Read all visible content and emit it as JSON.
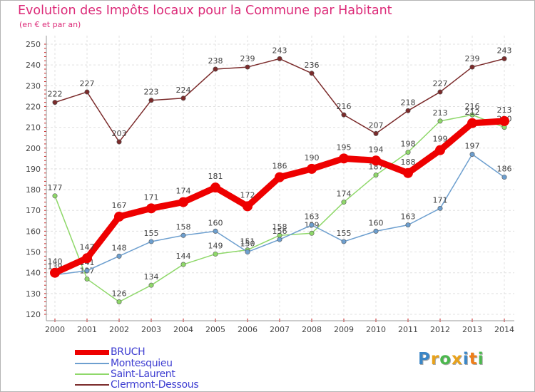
{
  "header": {
    "title": "Evolution des Impôts locaux pour la Commune par Habitant",
    "subtitle": "(en € et par an)"
  },
  "chart_data": {
    "type": "line",
    "title": "Evolution des Impôts locaux pour la Commune par Habitant",
    "subtitle": "(en € et par an)",
    "xlabel": "",
    "ylabel": "",
    "x": [
      "2000",
      "2001",
      "2002",
      "2003",
      "2004",
      "2005",
      "2006",
      "2007",
      "2008",
      "2009",
      "2010",
      "2011",
      "2012",
      "2013",
      "2014"
    ],
    "ylim": [
      120,
      250
    ],
    "yticks": [
      120,
      130,
      140,
      150,
      160,
      170,
      180,
      190,
      200,
      210,
      220,
      230,
      240,
      250
    ],
    "grid": true,
    "legend_position": "bottom-left",
    "series": [
      {
        "name": "Clermont-Dessous",
        "color": "#7b2b2b",
        "values": [
          222,
          227,
          203,
          223,
          224,
          238,
          239,
          243,
          236,
          216,
          207,
          218,
          227,
          239,
          243
        ]
      },
      {
        "name": "Saint-Laurent",
        "color": "#8fd86a",
        "values": [
          177,
          137,
          126,
          134,
          144,
          149,
          151,
          158,
          159,
          174,
          187,
          198,
          213,
          216,
          210
        ]
      },
      {
        "name": "Montesquieu",
        "color": "#6d9fcf",
        "values": [
          139,
          141,
          148,
          155,
          158,
          160,
          150,
          156,
          163,
          155,
          160,
          163,
          171,
          197,
          186
        ]
      },
      {
        "name": "BRUCH",
        "color": "#ee0000",
        "values": [
          140,
          147,
          167,
          171,
          174,
          181,
          172,
          186,
          190,
          195,
          194,
          188,
          199,
          212,
          213
        ]
      }
    ]
  },
  "legend": {
    "items": [
      {
        "label": "BRUCH",
        "color": "#ee0000"
      },
      {
        "label": "Montesquieu",
        "color": "#6d9fcf"
      },
      {
        "label": "Saint-Laurent",
        "color": "#8fd86a"
      },
      {
        "label": "Clermont-Dessous",
        "color": "#7b2b2b"
      }
    ]
  },
  "logo": {
    "letters": [
      {
        "ch": "P",
        "color": "#3a86c6"
      },
      {
        "ch": "r",
        "color": "#e8a21b"
      },
      {
        "ch": "o",
        "color": "#4bb84d"
      },
      {
        "ch": "x",
        "color": "#e8a21b"
      },
      {
        "ch": "i",
        "color": "#3a86c6"
      },
      {
        "ch": "t",
        "color": "#ef7f1a"
      },
      {
        "ch": "i",
        "color": "#4bb84d"
      }
    ]
  }
}
